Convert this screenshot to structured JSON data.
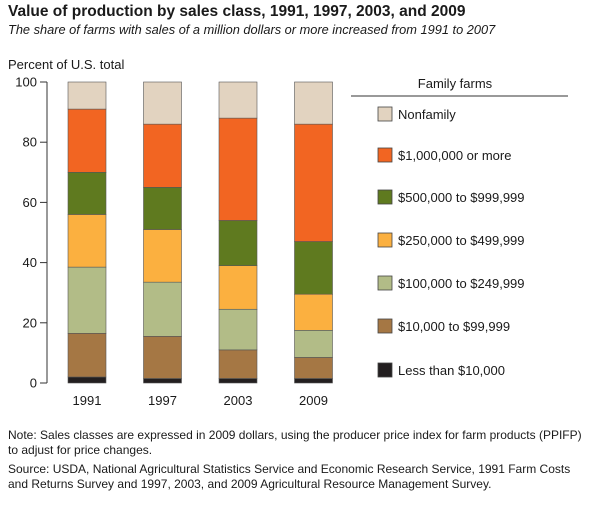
{
  "header": {
    "title": "Value of production by sales class, 1991, 1997, 2003, and 2009",
    "subtitle": "The share of farms with sales of a million dollars or more increased from 1991 to 2007"
  },
  "chart_data": {
    "type": "bar",
    "stacked": true,
    "ylabel": "Percent of U.S. total",
    "ylim": [
      0,
      100
    ],
    "yticks": [
      0,
      20,
      40,
      60,
      80,
      100
    ],
    "categories": [
      "1991",
      "1997",
      "2003",
      "2009"
    ],
    "legend_title": "Family farms",
    "legend_position": "right",
    "series": [
      {
        "name": "Less than $10,000",
        "color": "#231f20",
        "values": [
          2,
          1.5,
          1.5,
          1.5
        ]
      },
      {
        "name": "$10,000 to $99,999",
        "color": "#a57744",
        "values": [
          14.5,
          14,
          9.5,
          7
        ]
      },
      {
        "name": "$100,000 to $249,999",
        "color": "#b2bc87",
        "values": [
          22,
          18,
          13.5,
          9
        ]
      },
      {
        "name": "$250,000 to $499,999",
        "color": "#fbb040",
        "values": [
          17.5,
          17.5,
          14.5,
          12
        ]
      },
      {
        "name": "$500,000 to $999,999",
        "color": "#5f7a1f",
        "values": [
          14,
          14,
          15,
          17.5
        ]
      },
      {
        "name": "$1,000,000 or more",
        "color": "#f26522",
        "values": [
          21,
          21,
          34,
          39
        ]
      },
      {
        "name": "Nonfamily",
        "color": "#e2d3c0",
        "values": [
          9,
          14,
          12,
          14
        ]
      }
    ]
  },
  "footer": {
    "note": "Note:  Sales classes are expressed in 2009 dollars, using the producer price index for farm products (PPIFP) to adjust for price changes.",
    "source": "Source:  USDA, National Agricultural Statistics Service and  Economic Research Service, 1991 Farm Costs and Returns Survey and 1997, 2003, and 2009 Agricultural Resource Management Survey."
  }
}
